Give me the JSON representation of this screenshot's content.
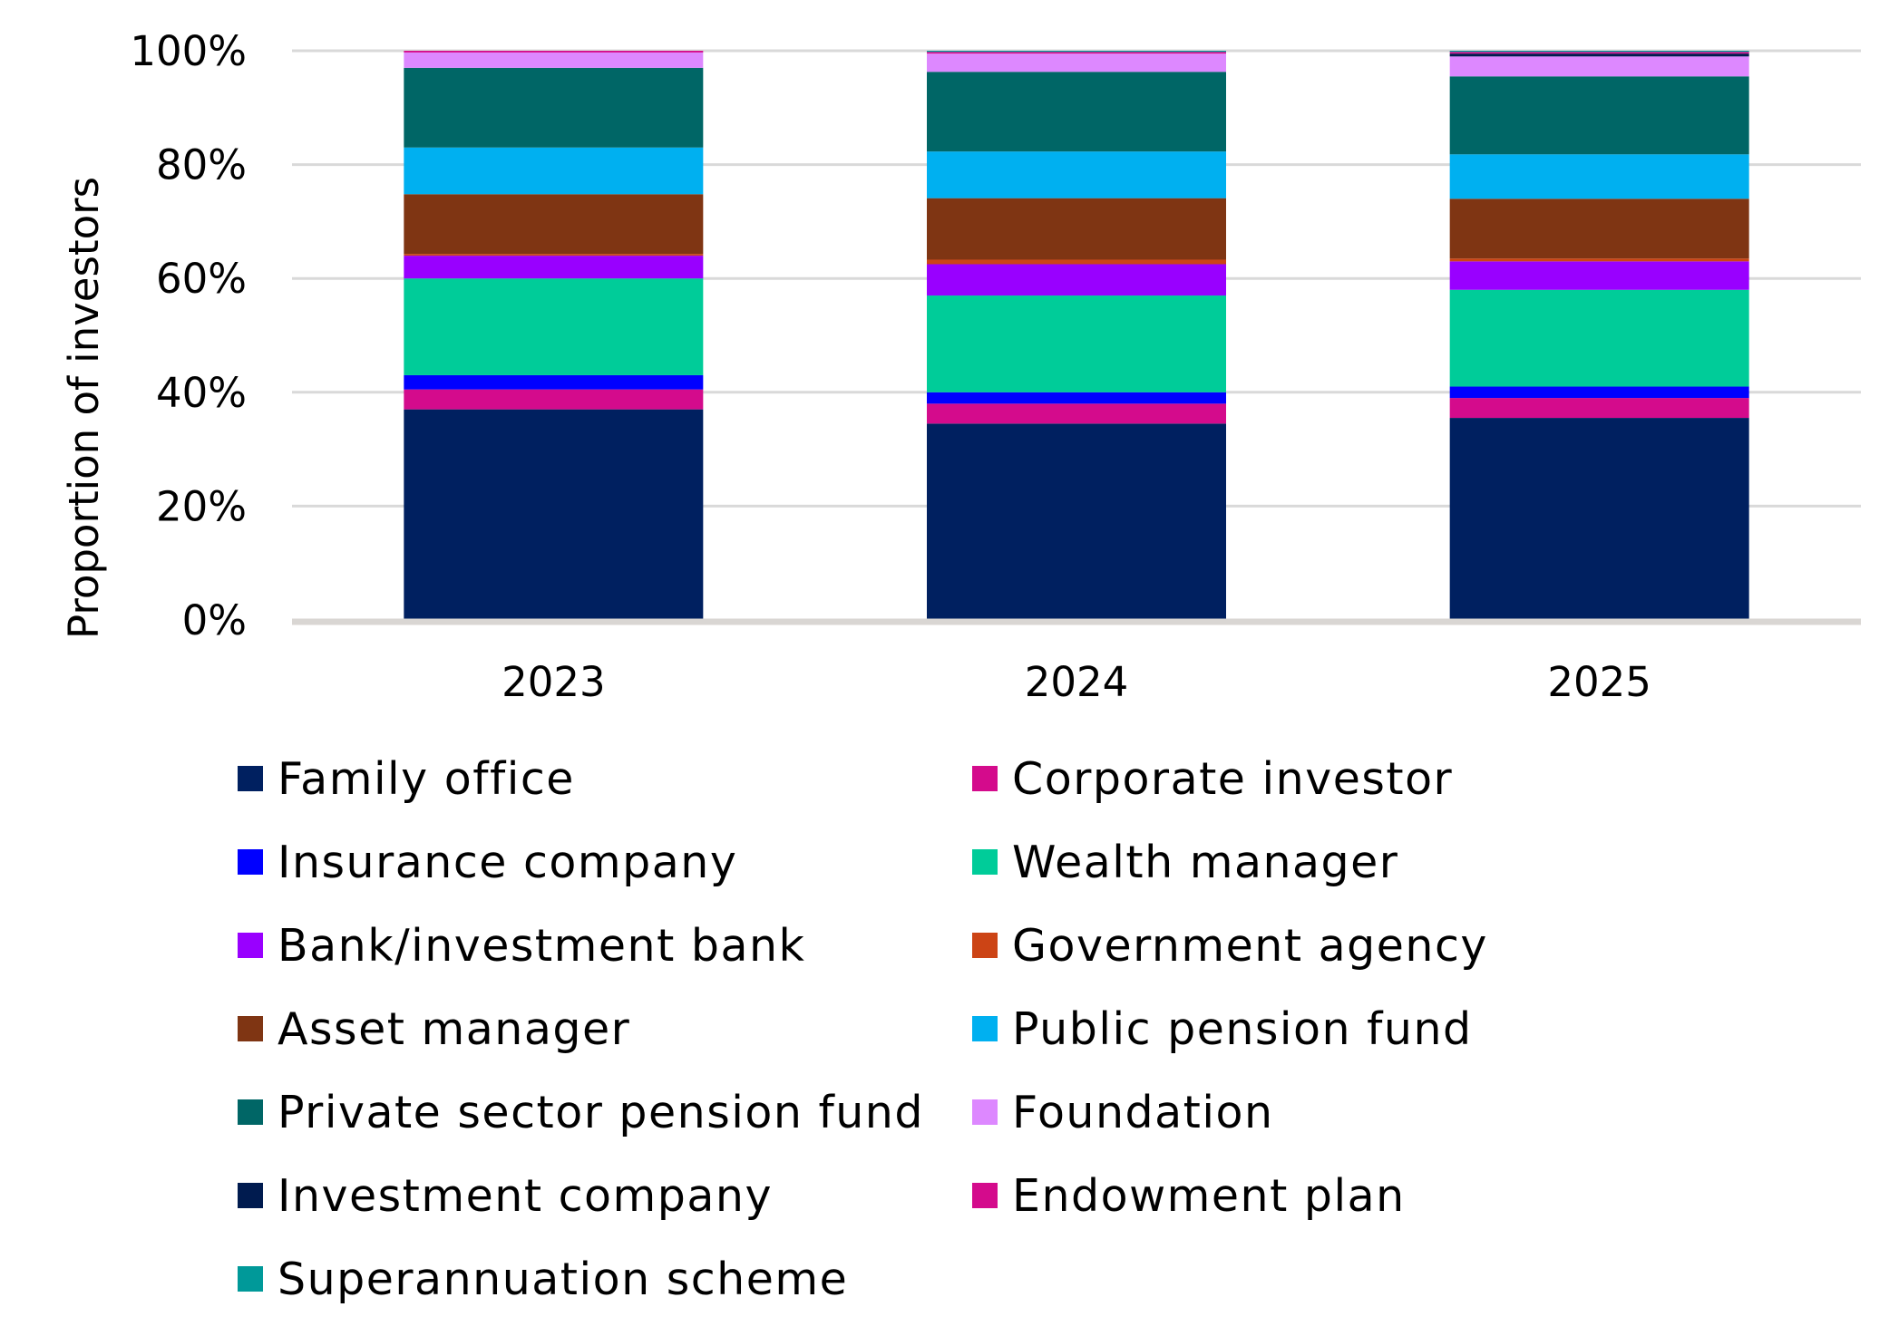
{
  "chart_data": {
    "type": "bar",
    "stacked": true,
    "title": "",
    "xlabel": "",
    "ylabel": "Proportion of investors",
    "ylim": [
      0,
      100
    ],
    "y_ticks": [
      "0%",
      "20%",
      "40%",
      "60%",
      "80%",
      "100%"
    ],
    "grid": true,
    "legend_position": "bottom",
    "categories": [
      "2023",
      "2024",
      "2025"
    ],
    "series": [
      {
        "name": "Family office",
        "color": "#002060",
        "values": [
          37.0,
          34.5,
          35.5
        ]
      },
      {
        "name": "Corporate investor",
        "color": "#D40B8C",
        "values": [
          3.5,
          3.5,
          3.5
        ]
      },
      {
        "name": "Insurance company",
        "color": "#0000FF",
        "values": [
          2.5,
          2.0,
          2.0
        ]
      },
      {
        "name": "Wealth manager",
        "color": "#00CC99",
        "values": [
          17.0,
          17.0,
          17.0
        ]
      },
      {
        "name": "Bank/investment bank",
        "color": "#9900FF",
        "values": [
          4.0,
          5.5,
          5.0
        ]
      },
      {
        "name": "Government agency",
        "color": "#CC4415",
        "values": [
          0.3,
          0.8,
          0.5
        ]
      },
      {
        "name": "Asset manager",
        "color": "#7F3513",
        "values": [
          10.5,
          10.8,
          10.5
        ]
      },
      {
        "name": "Public pension fund",
        "color": "#00B0F0",
        "values": [
          8.2,
          8.2,
          7.8
        ]
      },
      {
        "name": "Private sector pension fund",
        "color": "#006666",
        "values": [
          14.0,
          14.0,
          13.7
        ]
      },
      {
        "name": "Foundation",
        "color": "#DD88FF",
        "values": [
          2.7,
          3.2,
          3.5
        ]
      },
      {
        "name": "Investment company",
        "color": "#001B4F",
        "values": [
          0.0,
          0.0,
          0.5
        ]
      },
      {
        "name": "Endowment plan",
        "color": "#D40B8C",
        "values": [
          0.3,
          0.3,
          0.3
        ]
      },
      {
        "name": "Superannuation scheme",
        "color": "#009999",
        "values": [
          0.0,
          0.2,
          0.2
        ]
      }
    ]
  }
}
